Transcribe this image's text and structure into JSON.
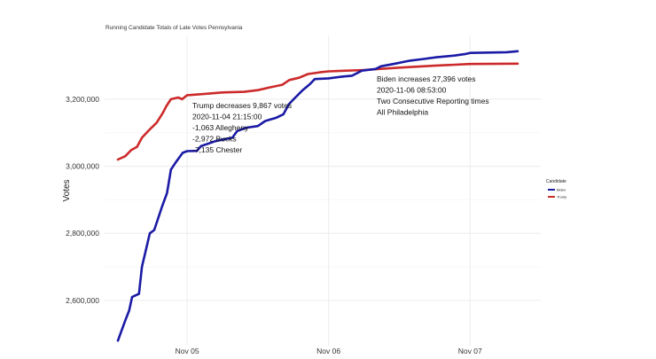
{
  "chart_data": {
    "type": "line",
    "title": "Running Candidate Totals of Late Votes Pennsylvania",
    "xlabel": "",
    "ylabel": "Votes",
    "xlim": [
      "2020-11-04 10:00",
      "2020-11-07 12:00"
    ],
    "ylim": [
      2465000,
      3390000
    ],
    "x_ticks": [
      {
        "x": "2020-11-05 00:00",
        "label": "Nov 05"
      },
      {
        "x": "2020-11-06 00:00",
        "label": "Nov 06"
      },
      {
        "x": "2020-11-07 00:00",
        "label": "Nov 07"
      }
    ],
    "y_ticks": [
      {
        "y": 2600000,
        "label": "2,600,000"
      },
      {
        "y": 2800000,
        "label": "2,800,000"
      },
      {
        "y": 3000000,
        "label": "3,000,000"
      },
      {
        "y": 3200000,
        "label": "3,200,000"
      }
    ],
    "grid": true,
    "legend": {
      "title": "Candidate",
      "position": "right"
    },
    "series": [
      {
        "name": "Biden",
        "color": "#1a1aa6",
        "points": [
          [
            "2020-11-04 12:15",
            2480000
          ],
          [
            "2020-11-04 13:30",
            2540000
          ],
          [
            "2020-11-04 14:10",
            2570000
          ],
          [
            "2020-11-04 14:40",
            2610000
          ],
          [
            "2020-11-04 15:50",
            2620000
          ],
          [
            "2020-11-04 16:20",
            2700000
          ],
          [
            "2020-11-04 17:40",
            2800000
          ],
          [
            "2020-11-04 18:25",
            2810000
          ],
          [
            "2020-11-04 19:45",
            2880000
          ],
          [
            "2020-11-04 20:35",
            2920000
          ],
          [
            "2020-11-04 21:15",
            2990000
          ],
          [
            "2020-11-04 22:00",
            3010000
          ],
          [
            "2020-11-04 23:15",
            3040000
          ],
          [
            "2020-11-05 00:00",
            3045000
          ],
          [
            "2020-11-05 01:40",
            3046000
          ],
          [
            "2020-11-05 02:20",
            3060000
          ],
          [
            "2020-11-05 04:50",
            3075000
          ],
          [
            "2020-11-05 06:10",
            3080000
          ],
          [
            "2020-11-05 07:40",
            3085000
          ],
          [
            "2020-11-05 08:30",
            3105000
          ],
          [
            "2020-11-05 10:00",
            3115000
          ],
          [
            "2020-11-05 12:00",
            3120000
          ],
          [
            "2020-11-05 13:15",
            3135000
          ],
          [
            "2020-11-05 15:10",
            3145000
          ],
          [
            "2020-11-05 16:20",
            3155000
          ],
          [
            "2020-11-05 17:15",
            3185000
          ],
          [
            "2020-11-05 18:05",
            3200000
          ],
          [
            "2020-11-05 19:30",
            3225000
          ],
          [
            "2020-11-05 20:50",
            3245000
          ],
          [
            "2020-11-05 21:40",
            3260000
          ],
          [
            "2020-11-06 00:00",
            3262000
          ],
          [
            "2020-11-06 02:40",
            3268000
          ],
          [
            "2020-11-06 04:00",
            3270000
          ],
          [
            "2020-11-06 05:40",
            3285000
          ],
          [
            "2020-11-06 08:00",
            3290000
          ],
          [
            "2020-11-06 08:53",
            3298000
          ],
          [
            "2020-11-06 11:00",
            3305000
          ],
          [
            "2020-11-06 13:50",
            3315000
          ],
          [
            "2020-11-06 16:10",
            3320000
          ],
          [
            "2020-11-06 18:20",
            3325000
          ],
          [
            "2020-11-06 21:20",
            3330000
          ],
          [
            "2020-11-06 23:20",
            3335000
          ],
          [
            "2020-11-07 00:00",
            3338000
          ],
          [
            "2020-11-07 06:10",
            3340000
          ],
          [
            "2020-11-07 08:05",
            3343000
          ]
        ]
      },
      {
        "name": "Trump",
        "color": "#cc2a2a",
        "points": [
          [
            "2020-11-04 12:15",
            3020000
          ],
          [
            "2020-11-04 13:30",
            3030000
          ],
          [
            "2020-11-04 14:30",
            3048000
          ],
          [
            "2020-11-04 15:30",
            3058000
          ],
          [
            "2020-11-04 16:20",
            3085000
          ],
          [
            "2020-11-04 17:40",
            3110000
          ],
          [
            "2020-11-04 18:50",
            3130000
          ],
          [
            "2020-11-04 19:50",
            3158000
          ],
          [
            "2020-11-04 20:30",
            3180000
          ],
          [
            "2020-11-04 21:15",
            3200000
          ],
          [
            "2020-11-04 22:30",
            3205000
          ],
          [
            "2020-11-04 23:10",
            3200000
          ],
          [
            "2020-11-05 00:00",
            3212000
          ],
          [
            "2020-11-05 02:30",
            3215000
          ],
          [
            "2020-11-05 06:00",
            3220000
          ],
          [
            "2020-11-05 09:40",
            3222000
          ],
          [
            "2020-11-05 12:00",
            3227000
          ],
          [
            "2020-11-05 14:00",
            3235000
          ],
          [
            "2020-11-05 16:10",
            3243000
          ],
          [
            "2020-11-05 17:20",
            3257000
          ],
          [
            "2020-11-05 19:00",
            3264000
          ],
          [
            "2020-11-05 20:30",
            3275000
          ],
          [
            "2020-11-05 22:30",
            3280000
          ],
          [
            "2020-11-06 00:00",
            3283000
          ],
          [
            "2020-11-06 06:00",
            3287000
          ],
          [
            "2020-11-06 12:00",
            3294000
          ],
          [
            "2020-11-06 18:00",
            3300000
          ],
          [
            "2020-11-07 00:00",
            3305000
          ],
          [
            "2020-11-07 08:05",
            3306000
          ]
        ]
      }
    ],
    "annotations": [
      {
        "lines": [
          "Trump decreases 9,867 votes",
          "2020-11-04 21:15:00",
          "-1,063 Allegheny",
          "-2,972 Bucks",
          "-7,135 Chester"
        ]
      },
      {
        "lines": [
          "Biden increases 27,396 votes",
          "2020-11-06 08:53:00",
          "Two Consecutive Reporting times",
          "All Philadelphia"
        ]
      }
    ]
  }
}
